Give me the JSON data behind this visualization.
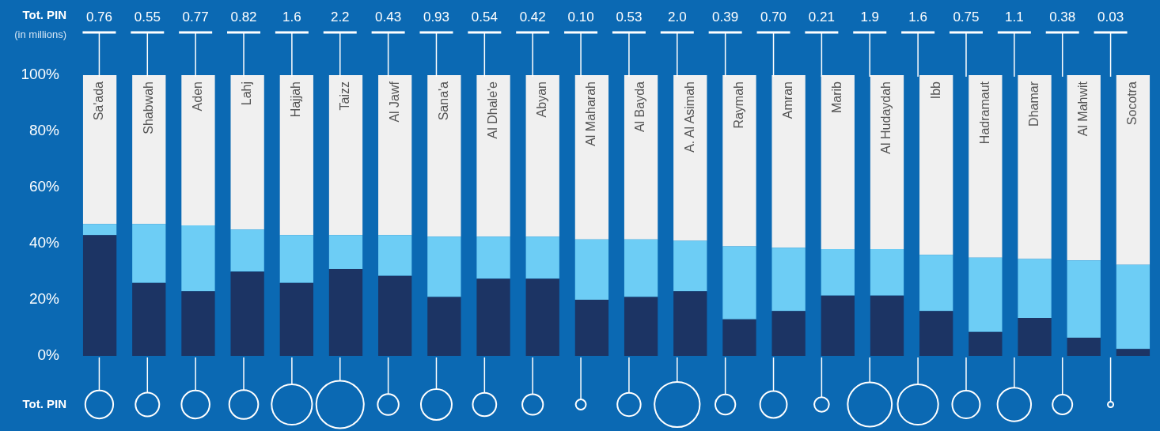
{
  "chart_data": [
    {
      "type": "bar",
      "stacked": true,
      "categories": [
        "Sa'ada",
        "Shabwah",
        "Aden",
        "Lahj",
        "Hajjah",
        "Taizz",
        "Al Jawf",
        "Sana'a",
        "Al Dhale'e",
        "Abyan",
        "Al Maharah",
        "Al Bayda",
        "A. Al Asimah",
        "Raymah",
        "Amran",
        "Marib",
        "Al Hudaydah",
        "Ibb",
        "Hadramaut",
        "Dhamar",
        "Al Mahwit",
        "Socotra"
      ],
      "series": [
        {
          "color": "#1c3464",
          "values": [
            43,
            26,
            23,
            30,
            26,
            31,
            28.5,
            21,
            27.5,
            27.5,
            20,
            21,
            23,
            13,
            16,
            21.5,
            21.5,
            16,
            8.5,
            13.5,
            6.5,
            2.5
          ]
        },
        {
          "color": "#6dcdf5",
          "values": [
            4,
            21,
            23.5,
            15,
            17,
            12,
            14.5,
            21.5,
            15,
            15,
            21.5,
            20.5,
            18,
            26,
            22.5,
            16.5,
            16.5,
            20,
            26.5,
            21,
            27.5,
            30
          ]
        },
        {
          "color": "#f0f0f0",
          "values": [
            53,
            53,
            53.5,
            55,
            57,
            57,
            57,
            57.5,
            57.5,
            57.5,
            58.5,
            58.5,
            59,
            61,
            61.5,
            62,
            62,
            64,
            65,
            65.5,
            66,
            67.5
          ]
        }
      ],
      "ylim": [
        0,
        100
      ],
      "yticks": [
        {
          "value": 0,
          "label": "0%"
        },
        {
          "value": 20,
          "label": "20%"
        },
        {
          "value": 40,
          "label": "40%"
        },
        {
          "value": 60,
          "label": "60%"
        },
        {
          "value": 80,
          "label": "80%"
        },
        {
          "value": 100,
          "label": "100%"
        }
      ],
      "grid": false,
      "legend": false
    },
    {
      "type": "other",
      "title": "Tot. PIN",
      "subtitle": "(in millions)",
      "ylabel": "Tot. PIN",
      "categories": [
        null,
        null,
        null,
        null,
        null,
        null,
        null,
        null,
        null,
        null,
        null,
        null,
        null,
        null,
        null,
        null,
        null,
        null,
        null,
        null,
        null,
        null
      ],
      "values": [
        0.76,
        0.55,
        0.77,
        0.82,
        1.6,
        2.2,
        0.43,
        0.93,
        0.54,
        0.42,
        0.1,
        0.53,
        2.0,
        0.39,
        0.7,
        0.21,
        1.9,
        1.6,
        0.75,
        1.1,
        0.38,
        0.03
      ],
      "value_labels": [
        "0.76",
        "0.55",
        "0.77",
        "0.82",
        "1.6",
        "2.2",
        "0.43",
        "0.93",
        "0.54",
        "0.42",
        "0.10",
        "0.53",
        "2.0",
        "0.39",
        "0.70",
        "0.21",
        "1.9",
        "1.6",
        "0.75",
        "1.1",
        "0.38",
        "0.03"
      ]
    }
  ]
}
